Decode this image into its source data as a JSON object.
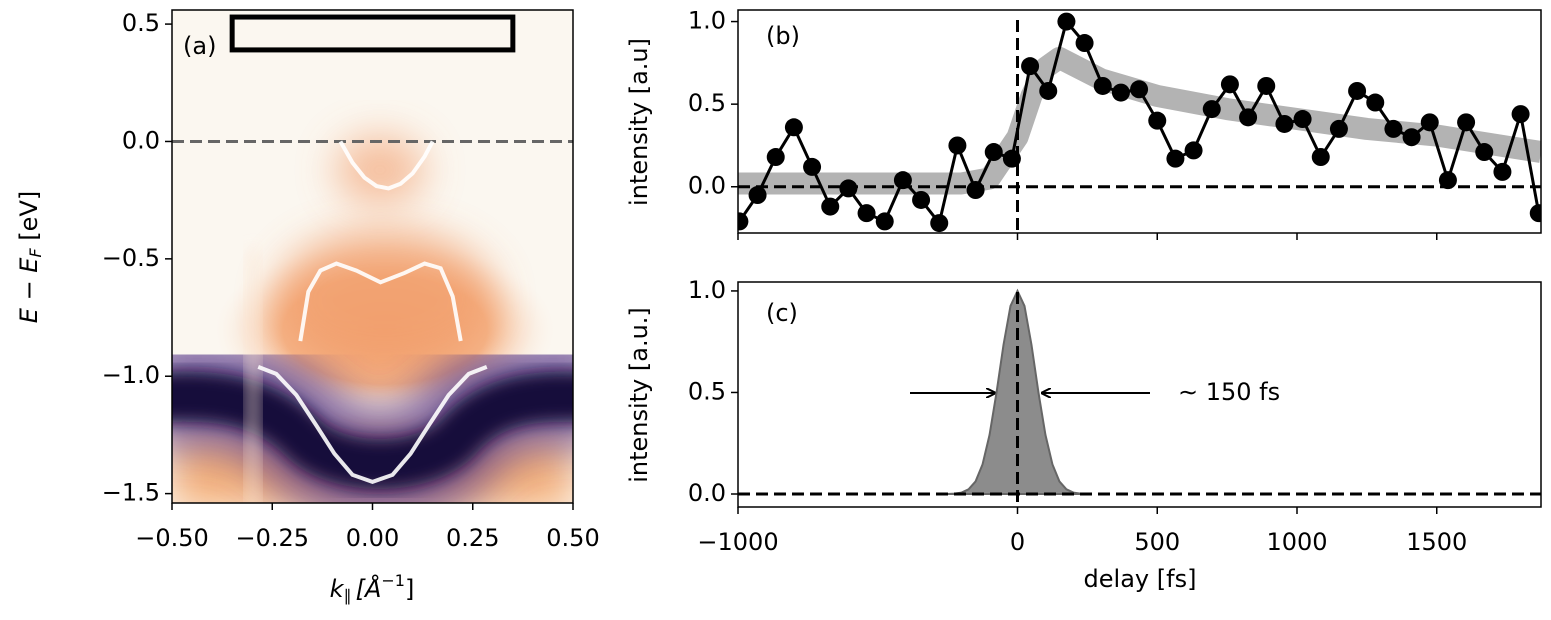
{
  "chart_data": [
    {
      "type": "image",
      "title": "(a)",
      "xlabel_parts": [
        "k",
        "∥",
        "[Å",
        "−1",
        "]"
      ],
      "ylabel_parts": [
        "E",
        " − ",
        "E",
        "F",
        " [eV]"
      ],
      "xlim": [
        -0.5,
        0.5
      ],
      "ylim": [
        -1.54,
        0.56
      ],
      "xticks": [
        {
          "value": -0.5,
          "label": "−0.50"
        },
        {
          "value": -0.25,
          "label": "−0.25"
        },
        {
          "value": 0,
          "label": "0.00"
        },
        {
          "value": 0.25,
          "label": "0.25"
        },
        {
          "value": 0.5,
          "label": "0.50"
        }
      ],
      "yticks": [
        0.5,
        {
          "value": 0,
          "label": "0.0"
        },
        {
          "value": -0.5,
          "label": "−0.5"
        },
        {
          "value": -1,
          "label": "−1.0"
        },
        {
          "value": -1.5,
          "label": "−1.5"
        }
      ],
      "hline": 0,
      "hline_color": "#666666",
      "box": {
        "x": [
          -0.35,
          0.35
        ],
        "y": [
          0.39,
          0.53
        ]
      },
      "series": [
        {
          "color": "#ffffff",
          "x": [
            -0.08,
            -0.05,
            -0.02,
            0.01,
            0.04,
            0.07,
            0.1,
            0.13,
            0.15
          ],
          "values": [
            0.0,
            -0.09,
            -0.154,
            -0.19,
            -0.2,
            -0.18,
            -0.136,
            -0.064,
            0.0
          ]
        },
        {
          "color": "#ffffff",
          "x": [
            -0.18,
            -0.16,
            -0.13,
            -0.09,
            -0.04,
            0.02,
            0.08,
            0.13,
            0.17,
            0.2,
            0.22
          ],
          "values": [
            -0.85,
            -0.64,
            -0.55,
            -0.52,
            -0.55,
            -0.6,
            -0.56,
            -0.52,
            -0.54,
            -0.66,
            -0.85
          ]
        },
        {
          "color": "#ffffff",
          "x": [
            -0.285,
            -0.24,
            -0.19,
            -0.14,
            -0.095,
            -0.05,
            0,
            0.05,
            0.095,
            0.14,
            0.19,
            0.24,
            0.285
          ],
          "values": [
            -0.96,
            -0.99,
            -1.08,
            -1.21,
            -1.33,
            -1.42,
            -1.45,
            -1.42,
            -1.33,
            -1.21,
            -1.08,
            -0.99,
            -0.96
          ]
        }
      ]
    },
    {
      "type": "line",
      "title": "(b)",
      "ylabel": "intensity [a.u]",
      "xlim": [
        -1000,
        1873
      ],
      "ylim": [
        -0.28,
        1.07
      ],
      "xticks": [
        {
          "value": -1000,
          "label": "−1000"
        },
        0,
        500,
        1000,
        1500
      ],
      "show_xtick_labels": false,
      "yticks": [
        {
          "value": 0,
          "label": "0.0"
        },
        {
          "value": 0.5,
          "label": "0.5"
        },
        {
          "value": 1,
          "label": "1.0"
        }
      ],
      "hline": 0,
      "vline": 0,
      "fit": {
        "color": "#b3b3b3",
        "x": [
          -1000,
          -200,
          -100,
          0,
          50,
          100,
          150,
          300,
          500,
          750,
          1000,
          1250,
          1500,
          1873
        ],
        "values": [
          0.02,
          0.02,
          0.05,
          0.3,
          0.55,
          0.72,
          0.78,
          0.65,
          0.55,
          0.47,
          0.41,
          0.35,
          0.31,
          0.21
        ]
      },
      "x": [
        -995,
        -930,
        -865,
        -800,
        -735,
        -670,
        -605,
        -540,
        -475,
        -410,
        -345,
        -280,
        -215,
        -150,
        -85,
        -20,
        45,
        110,
        175,
        240,
        305,
        370,
        435,
        500,
        565,
        630,
        695,
        760,
        825,
        890,
        955,
        1020,
        1085,
        1150,
        1215,
        1280,
        1345,
        1410,
        1475,
        1540,
        1605,
        1670,
        1735,
        1800,
        1865
      ],
      "series": [
        {
          "color": "#000000",
          "values": [
            -0.21,
            -0.05,
            0.18,
            0.36,
            0.12,
            -0.12,
            -0.01,
            -0.16,
            -0.21,
            0.04,
            -0.08,
            -0.22,
            0.25,
            -0.02,
            0.21,
            0.17,
            0.73,
            0.58,
            1.0,
            0.87,
            0.61,
            0.57,
            0.59,
            0.4,
            0.17,
            0.22,
            0.47,
            0.62,
            0.42,
            0.61,
            0.38,
            0.41,
            0.18,
            0.35,
            0.58,
            0.51,
            0.35,
            0.3,
            0.39,
            0.04,
            0.39,
            0.21,
            0.09,
            0.44,
            -0.16
          ]
        }
      ]
    },
    {
      "type": "area",
      "title": "(c)",
      "ylabel": "intensity [a.u.]",
      "xlabel": "delay [fs]",
      "xlim": [
        -1000,
        1873
      ],
      "ylim": [
        -0.064,
        1.044
      ],
      "xticks": [
        {
          "value": -1000,
          "label": "−1000"
        },
        0,
        500,
        1000,
        1500
      ],
      "show_xtick_labels": true,
      "yticks": [
        {
          "value": 0,
          "label": "0.0"
        },
        {
          "value": 0.5,
          "label": "0.5"
        },
        {
          "value": 1,
          "label": "1.0"
        }
      ],
      "hline": 0,
      "vline": 0,
      "color": "#8c8c8c",
      "x": [
        -250,
        -225,
        -200,
        -175,
        -150,
        -125,
        -100,
        -75,
        -50,
        -25,
        0,
        25,
        50,
        75,
        100,
        125,
        150,
        175,
        200,
        225,
        250
      ],
      "values": [
        0,
        0.002,
        0.007,
        0.023,
        0.062,
        0.146,
        0.291,
        0.5,
        0.735,
        0.926,
        1,
        0.926,
        0.735,
        0.5,
        0.291,
        0.146,
        0.062,
        0.023,
        0.007,
        0.002,
        0
      ],
      "annotation": "∼ 150 fs"
    }
  ]
}
